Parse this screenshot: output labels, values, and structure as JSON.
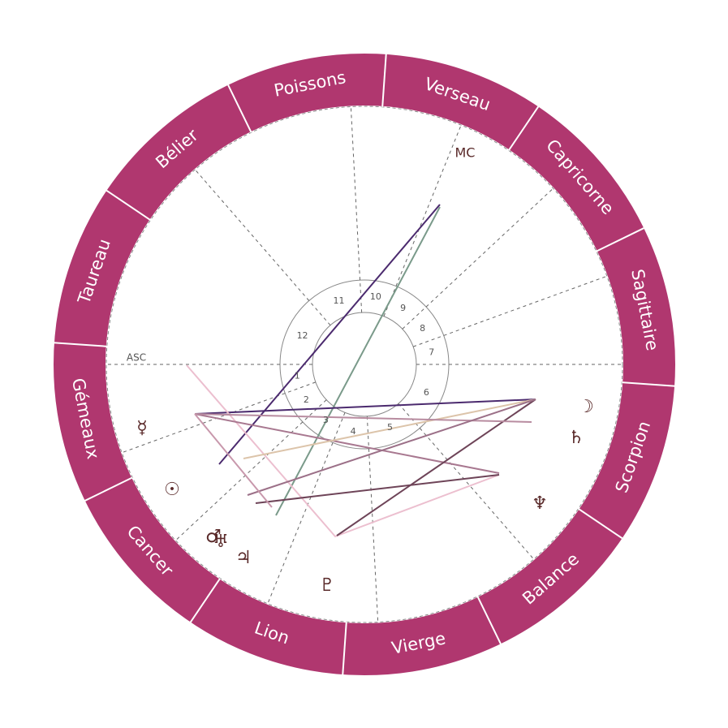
{
  "signs": [
    "Poissons",
    "Verseau",
    "Capricorne",
    "Sagittaire",
    "Scorpion",
    "Balance",
    "Vierge",
    "Lion",
    "Cancer",
    "Gémeaux",
    "Taureau",
    "Bélier"
  ],
  "houses": [
    "1",
    "2",
    "3",
    "4",
    "5",
    "6",
    "7",
    "8",
    "9",
    "10",
    "11",
    "12"
  ],
  "angles": {
    "asc": "ASC",
    "mc": "MC"
  },
  "planets": [
    "☿",
    "☉",
    "♂",
    "♅",
    "♃",
    "♇",
    "♆",
    "♄",
    "☽"
  ]
}
